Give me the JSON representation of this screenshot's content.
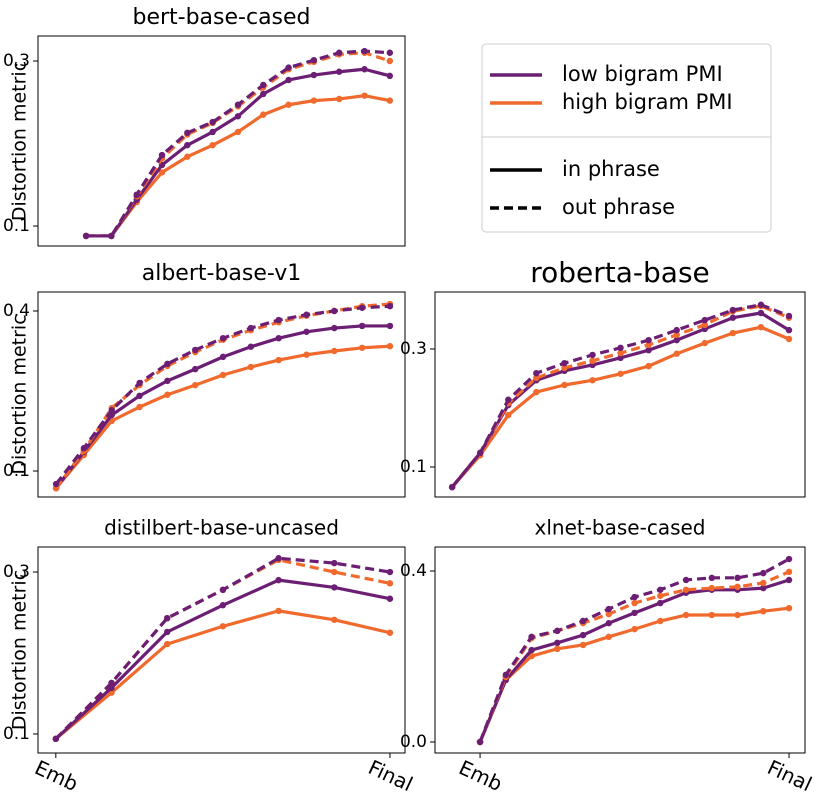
{
  "chart_data": [
    {
      "type": "line",
      "title": "bert-base-cased",
      "ylabel": "Distortion metric",
      "x": [
        0,
        1,
        2,
        3,
        4,
        5,
        6,
        7,
        8,
        9,
        10,
        11,
        12
      ],
      "xlim": [
        -1.9,
        12.6
      ],
      "ylim": [
        0.0758,
        0.3303
      ],
      "yticks": [
        0.1,
        0.3
      ],
      "series": [
        {
          "color": "#f0692d",
          "dash": "solid",
          "values": [
            0.088,
            0.088,
            0.129,
            0.165,
            0.184,
            0.198,
            0.214,
            0.235,
            0.247,
            0.252,
            0.254,
            0.258,
            0.252
          ]
        },
        {
          "color": "#6b1e74",
          "dash": "solid",
          "values": [
            0.088,
            0.088,
            0.132,
            0.174,
            0.198,
            0.214,
            0.233,
            0.26,
            0.277,
            0.283,
            0.287,
            0.29,
            0.282
          ]
        },
        {
          "color": "#f0692d",
          "dash": "dashed",
          "values": [
            0.088,
            0.088,
            0.136,
            0.182,
            0.211,
            0.225,
            0.245,
            0.268,
            0.29,
            0.299,
            0.308,
            0.31,
            0.3
          ]
        },
        {
          "color": "#6b1e74",
          "dash": "dashed",
          "values": [
            0.088,
            0.088,
            0.138,
            0.186,
            0.213,
            0.226,
            0.247,
            0.271,
            0.292,
            0.301,
            0.31,
            0.312,
            0.31
          ]
        }
      ]
    },
    {
      "type": "line",
      "title": "albert-base-v1",
      "ylabel": "Distortion metric",
      "x": [
        0,
        1,
        2,
        3,
        4,
        5,
        6,
        7,
        8,
        9,
        10,
        11,
        12
      ],
      "xlim": [
        -0.65,
        12.54
      ],
      "ylim": [
        0.0513,
        0.4356
      ],
      "yticks": [
        0.1,
        0.4
      ],
      "series": [
        {
          "color": "#f0692d",
          "dash": "solid",
          "values": [
            0.068,
            0.13,
            0.194,
            0.22,
            0.243,
            0.261,
            0.28,
            0.295,
            0.308,
            0.318,
            0.325,
            0.331,
            0.334
          ]
        },
        {
          "color": "#6b1e74",
          "dash": "solid",
          "values": [
            0.068,
            0.136,
            0.205,
            0.241,
            0.269,
            0.291,
            0.314,
            0.333,
            0.349,
            0.361,
            0.368,
            0.372,
            0.372
          ]
        },
        {
          "color": "#f0692d",
          "dash": "dashed",
          "values": [
            0.068,
            0.138,
            0.218,
            0.261,
            0.297,
            0.323,
            0.346,
            0.364,
            0.379,
            0.391,
            0.4,
            0.409,
            0.413
          ]
        },
        {
          "color": "#6b1e74",
          "dash": "dashed",
          "values": [
            0.0756,
            0.143,
            0.214,
            0.265,
            0.301,
            0.327,
            0.349,
            0.368,
            0.383,
            0.393,
            0.4,
            0.406,
            0.409
          ]
        }
      ]
    },
    {
      "type": "line",
      "title": "roberta-base",
      "x": [
        0,
        1,
        2,
        3,
        4,
        5,
        6,
        7,
        8,
        9,
        10,
        11,
        12
      ],
      "xlim": [
        -0.61,
        12.57
      ],
      "ylim": [
        0.0492,
        0.3966
      ],
      "yticks": [
        0.1,
        0.3
      ],
      "series": [
        {
          "color": "#f0692d",
          "dash": "solid",
          "values": [
            0.066,
            0.12,
            0.188,
            0.227,
            0.239,
            0.247,
            0.258,
            0.271,
            0.292,
            0.31,
            0.327,
            0.337,
            0.317
          ]
        },
        {
          "color": "#6b1e74",
          "dash": "solid",
          "values": [
            0.066,
            0.124,
            0.205,
            0.247,
            0.263,
            0.273,
            0.285,
            0.298,
            0.315,
            0.334,
            0.353,
            0.361,
            0.332
          ]
        },
        {
          "color": "#f0692d",
          "dash": "dashed",
          "values": [
            0.066,
            0.124,
            0.208,
            0.251,
            0.268,
            0.28,
            0.293,
            0.307,
            0.324,
            0.341,
            0.364,
            0.373,
            0.353
          ]
        },
        {
          "color": "#6b1e74",
          "dash": "dashed",
          "values": [
            0.066,
            0.124,
            0.214,
            0.259,
            0.276,
            0.29,
            0.302,
            0.315,
            0.332,
            0.349,
            0.366,
            0.375,
            0.356
          ]
        }
      ]
    },
    {
      "type": "line",
      "title": "distilbert-base-uncased",
      "ylabel": "Distortion metric",
      "x": [
        0,
        1,
        2,
        3,
        4,
        5,
        6
      ],
      "xlim": [
        -0.32,
        6.27
      ],
      "ylim": [
        0.0765,
        0.3309
      ],
      "yticks": [
        0.1,
        0.3
      ],
      "xticks": [
        {
          "value": 0,
          "label": "Emb"
        },
        {
          "value": 6,
          "label": "Final"
        }
      ],
      "series": [
        {
          "color": "#f0692d",
          "dash": "solid",
          "values": [
            0.094,
            0.151,
            0.211,
            0.233,
            0.252,
            0.241,
            0.225
          ]
        },
        {
          "color": "#6b1e74",
          "dash": "solid",
          "values": [
            0.094,
            0.157,
            0.226,
            0.259,
            0.29,
            0.281,
            0.267
          ]
        },
        {
          "color": "#f0692d",
          "dash": "dashed",
          "values": [
            0.094,
            0.163,
            0.243,
            0.278,
            0.315,
            0.3,
            0.286
          ]
        },
        {
          "color": "#6b1e74",
          "dash": "dashed",
          "values": [
            0.094,
            0.163,
            0.243,
            0.278,
            0.317,
            0.311,
            0.3
          ]
        }
      ]
    },
    {
      "type": "line",
      "title": "xlnet-base-cased",
      "x": [
        0,
        1,
        2,
        3,
        4,
        5,
        6,
        7,
        8,
        9,
        10,
        11,
        12
      ],
      "xlim": [
        -1.75,
        12.62
      ],
      "ylim": [
        -0.0257,
        0.4561
      ],
      "yticks": [
        {
          "value": 0,
          "label": "0.0"
        },
        0.4
      ],
      "xticks": [
        {
          "value": 0,
          "label": "Emb"
        },
        {
          "value": 12,
          "label": "Final"
        }
      ],
      "series": [
        {
          "color": "#f0692d",
          "dash": "solid",
          "values": [
            0.0,
            0.145,
            0.201,
            0.218,
            0.227,
            0.246,
            0.264,
            0.283,
            0.297,
            0.297,
            0.297,
            0.306,
            0.313
          ]
        },
        {
          "color": "#6b1e74",
          "dash": "solid",
          "values": [
            0.0,
            0.145,
            0.215,
            0.232,
            0.25,
            0.278,
            0.302,
            0.325,
            0.349,
            0.356,
            0.356,
            0.36,
            0.379
          ]
        },
        {
          "color": "#f0692d",
          "dash": "dashed",
          "values": [
            0.0,
            0.152,
            0.243,
            0.26,
            0.278,
            0.299,
            0.325,
            0.342,
            0.356,
            0.36,
            0.363,
            0.372,
            0.398
          ]
        },
        {
          "color": "#6b1e74",
          "dash": "dashed",
          "values": [
            0.0,
            0.157,
            0.246,
            0.26,
            0.283,
            0.311,
            0.339,
            0.356,
            0.379,
            0.384,
            0.384,
            0.395,
            0.428
          ]
        }
      ]
    }
  ],
  "legend": [
    {
      "label": "low bigram PMI",
      "color": "#6b1e74",
      "dash": "solid"
    },
    {
      "label": "high bigram PMI",
      "color": "#f0692d",
      "dash": "solid"
    },
    {
      "label": "in phrase",
      "color": "#000000",
      "dash": "solid"
    },
    {
      "label": "out phrase",
      "color": "#000000",
      "dash": "dashed"
    }
  ]
}
